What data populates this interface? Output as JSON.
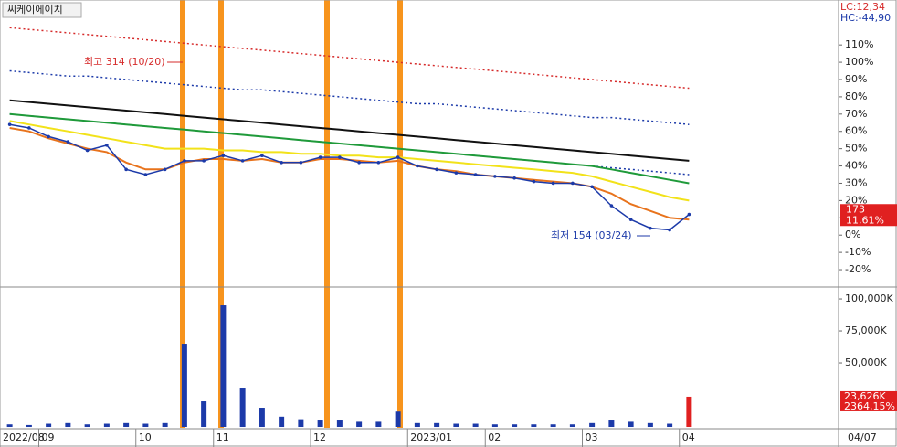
{
  "header": {
    "title": "씨케이에이치",
    "lc_label": "LC:12,34",
    "hc_label": "HC:-44,90",
    "date_label": "04/07"
  },
  "chart_data": [
    {
      "type": "line",
      "high_label": "최고 314 (10/20)",
      "low_label": "최저 154 (03/24)",
      "last_price": 173,
      "last_change": {
        "value": 11.61,
        "label": "11,61%"
      },
      "ylim": [
        -29.5,
        136
      ],
      "yticks": [
        {
          "value": 110,
          "label": "110%"
        },
        {
          "value": 100,
          "label": "100%"
        },
        {
          "value": 90,
          "label": "90%"
        },
        {
          "value": 80,
          "label": "80%"
        },
        {
          "value": 70,
          "label": "70%"
        },
        {
          "value": 60,
          "label": "60%"
        },
        {
          "value": 50,
          "label": "50%"
        },
        {
          "value": 40,
          "label": "40%"
        },
        {
          "value": 30,
          "label": "30%"
        },
        {
          "value": 20,
          "label": "20%"
        },
        {
          "value": 10,
          "label": "10%"
        },
        {
          "value": 0,
          "label": "0%"
        },
        {
          "value": -10,
          "label": "-10%"
        },
        {
          "value": -20,
          "label": "-20%"
        }
      ],
      "grid": false,
      "series": [
        {
          "color": "#d62b2b",
          "style": "dotted",
          "values": [
            120,
            119,
            118,
            117,
            116,
            115,
            114,
            113,
            112,
            111,
            110,
            109,
            108,
            107,
            106,
            105,
            104,
            103,
            102,
            101,
            100,
            99,
            98,
            97,
            96,
            95,
            94,
            93,
            92,
            91,
            90,
            89,
            88,
            87,
            86,
            85
          ]
        },
        {
          "color": "#1c3aa9",
          "style": "dotted",
          "values": [
            95,
            94,
            93,
            92,
            92,
            91,
            90,
            89,
            88,
            87,
            86,
            85,
            84,
            84,
            83,
            82,
            81,
            80,
            79,
            78,
            77,
            76,
            76,
            75,
            74,
            73,
            72,
            71,
            70,
            69,
            68,
            68,
            67,
            66,
            65,
            64
          ]
        },
        {
          "color": "#1c3aa9",
          "style": "dotted",
          "values": [
            70,
            69,
            68,
            67,
            66,
            65,
            64,
            63,
            62,
            61,
            60,
            59,
            58,
            57,
            56,
            55,
            54,
            53,
            52,
            51,
            50,
            49,
            48,
            47,
            46,
            45,
            44,
            43,
            42,
            41,
            40,
            39,
            38,
            37,
            36,
            35
          ]
        },
        {
          "color": "#111111",
          "style": "solid",
          "values": [
            78,
            77,
            76,
            75,
            74,
            73,
            72,
            71,
            70,
            69,
            68,
            67,
            66,
            65,
            64,
            63,
            62,
            61,
            60,
            59,
            58,
            57,
            56,
            55,
            54,
            53,
            52,
            51,
            50,
            49,
            48,
            47,
            46,
            45,
            44,
            43
          ]
        },
        {
          "color": "#1f9a3a",
          "style": "solid",
          "values": [
            70,
            69,
            68,
            67,
            66,
            65,
            64,
            63,
            62,
            61,
            60,
            59,
            58,
            57,
            56,
            55,
            54,
            53,
            52,
            51,
            50,
            49,
            48,
            47,
            46,
            45,
            44,
            43,
            42,
            41,
            40,
            38,
            36,
            34,
            32,
            30
          ]
        },
        {
          "color": "#f2e21a",
          "style": "solid",
          "values": [
            66,
            64,
            62,
            60,
            58,
            56,
            54,
            52,
            50,
            50,
            50,
            49,
            49,
            48,
            48,
            47,
            47,
            46,
            46,
            45,
            45,
            44,
            43,
            42,
            41,
            40,
            39,
            38,
            37,
            36,
            34,
            31,
            28,
            25,
            22,
            20
          ]
        },
        {
          "color": "#e8731c",
          "style": "solid",
          "values": [
            62,
            60,
            56,
            53,
            50,
            48,
            42,
            38,
            38,
            42,
            44,
            44,
            43,
            44,
            42,
            42,
            44,
            44,
            43,
            42,
            43,
            40,
            38,
            37,
            35,
            34,
            33,
            32,
            31,
            30,
            28,
            24,
            18,
            14,
            10,
            9
          ]
        },
        {
          "color": "#1c3aa9",
          "style": "price",
          "values": [
            64,
            62,
            57,
            54,
            49,
            52,
            38,
            35,
            38,
            43,
            43,
            46,
            43,
            46,
            42,
            42,
            45,
            45,
            42,
            42,
            45,
            40,
            38,
            36,
            35,
            34,
            33,
            31,
            30,
            30,
            28,
            17,
            9,
            4,
            3,
            12
          ]
        }
      ]
    },
    {
      "type": "bar",
      "categories": [
        "2022/08",
        null,
        "09",
        null,
        null,
        null,
        null,
        "10",
        null,
        null,
        null,
        "11",
        null,
        null,
        null,
        null,
        "12",
        null,
        null,
        null,
        null,
        "2023/01",
        null,
        null,
        null,
        "02",
        null,
        null,
        null,
        null,
        "03",
        null,
        null,
        null,
        null,
        "04"
      ],
      "values": [
        2000,
        1500,
        2500,
        3000,
        2000,
        2500,
        3000,
        2500,
        3000,
        65000,
        20000,
        95000,
        30000,
        15000,
        8000,
        6000,
        5000,
        5000,
        4000,
        4000,
        12000,
        3000,
        3000,
        2500,
        2500,
        2000,
        2000,
        2000,
        2000,
        2000,
        3000,
        5000,
        4000,
        3000,
        2500,
        23626
      ],
      "color": "#1c3aa9",
      "last_volume": {
        "value": 23626,
        "label": "23,626K"
      },
      "volume_change": {
        "value": 2364.15,
        "label": "2364,15%"
      },
      "ylim": [
        -700,
        108600
      ],
      "yticks": [
        {
          "value": 50000,
          "label": "50,000K"
        },
        {
          "value": 75000,
          "label": "75,000K"
        },
        {
          "value": 100000,
          "label": "100,000K"
        }
      ]
    }
  ]
}
